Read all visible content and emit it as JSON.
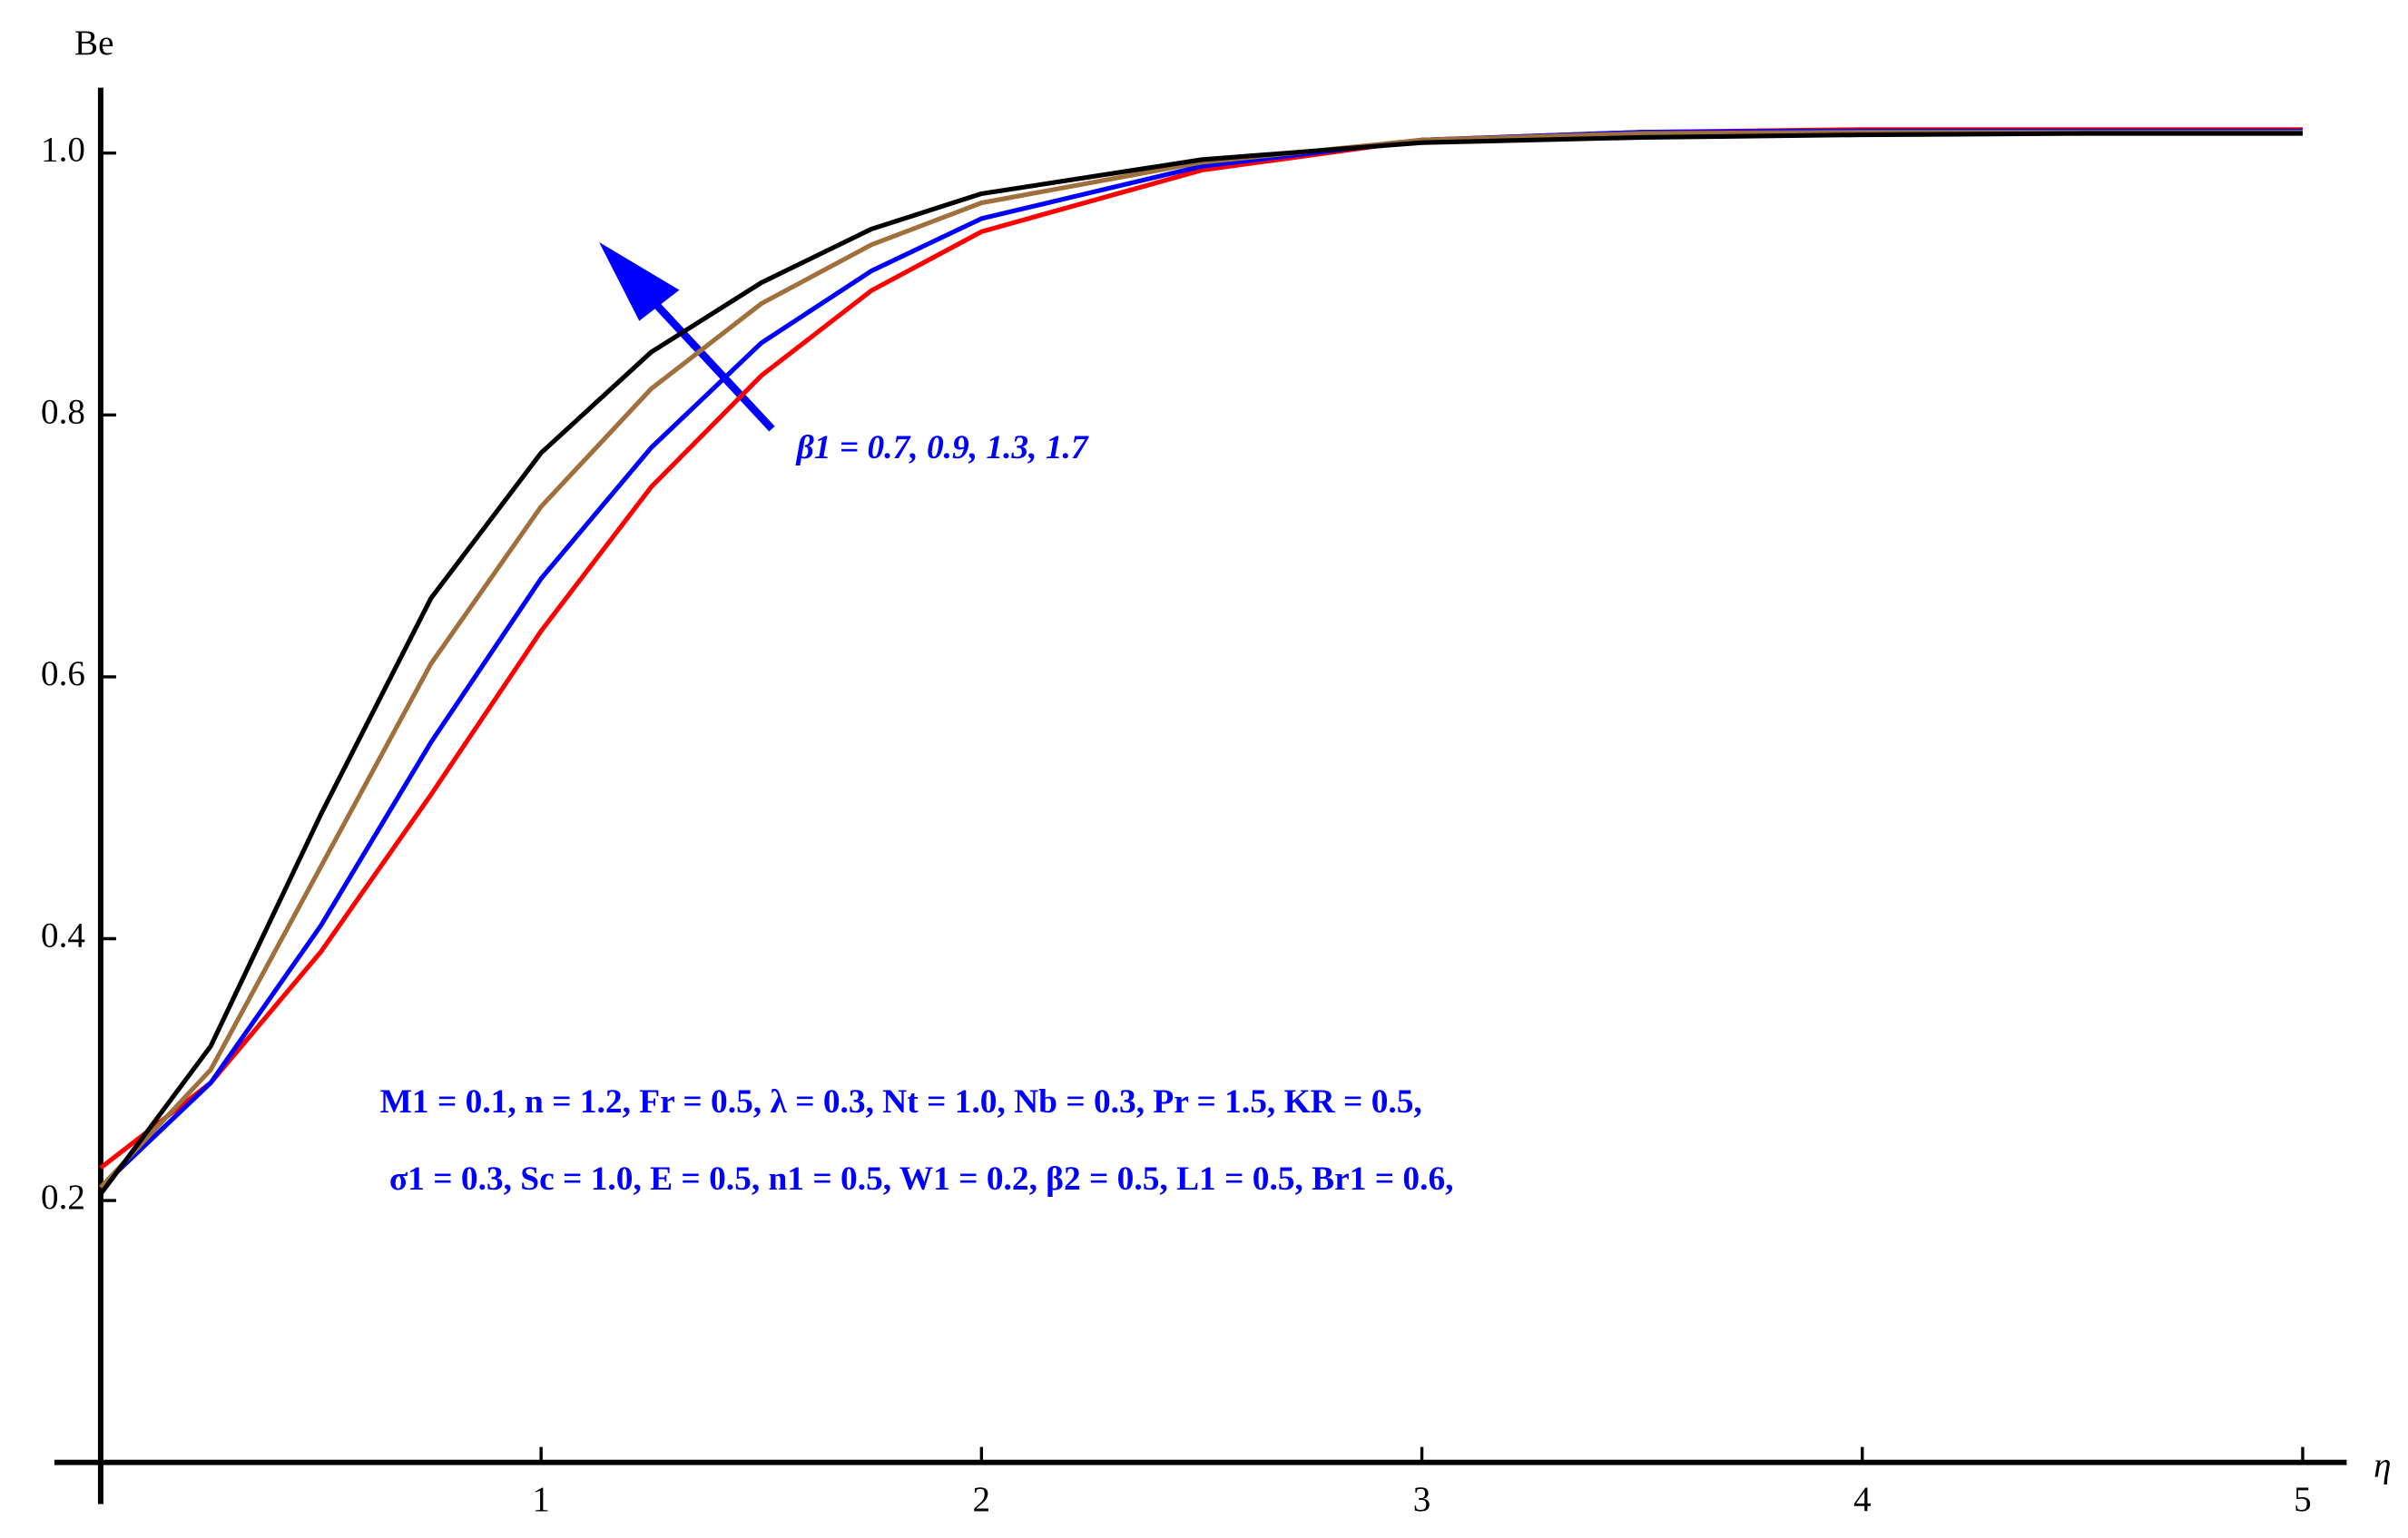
{
  "chart_data": {
    "type": "line",
    "ylabel": "Be",
    "xlabel": "η",
    "annotations": [
      "β1 = 0.7, 0.9, 1.3, 1.7",
      "M1 =  0.1, n = 1.2, Fr =  0.5,  λ = 0.3, Nt = 1.0, Nb = 0.3, Pr = 1.5, KR = 0.5,",
      "σ1 = 0.3,  Sc = 1.0,  E = 0.5, n1 = 0.5, W1 = 0.2, β2 = 0.5, L1 = 0.5, Br1 = 0.6,"
    ],
    "x": [
      0,
      0.25,
      0.5,
      0.75,
      1,
      1.25,
      1.5,
      1.75,
      2,
      2.5,
      3,
      3.5,
      4,
      4.5,
      5
    ],
    "series": [
      {
        "color": "#ff0000",
        "values": [
          0.225,
          0.29,
          0.39,
          0.51,
          0.635,
          0.745,
          0.83,
          0.895,
          0.94,
          0.987,
          1.01,
          1.016,
          1.018,
          1.018,
          1.018
        ]
      },
      {
        "color": "#0000ff",
        "values": [
          0.21,
          0.29,
          0.41,
          0.55,
          0.675,
          0.775,
          0.855,
          0.91,
          0.95,
          0.99,
          1.01,
          1.016,
          1.017,
          1.017,
          1.017
        ]
      },
      {
        "color": "#a0703c",
        "values": [
          0.21,
          0.3,
          0.455,
          0.61,
          0.73,
          0.82,
          0.885,
          0.93,
          0.962,
          0.993,
          1.01,
          1.015,
          1.016,
          1.016,
          1.016
        ]
      },
      {
        "color": "#000000",
        "values": [
          0.205,
          0.318,
          0.495,
          0.66,
          0.771,
          0.848,
          0.901,
          0.942,
          0.969,
          0.995,
          1.008,
          1.012,
          1.014,
          1.015,
          1.015
        ]
      }
    ],
    "xlim": [
      0,
      5.1
    ],
    "ylim": [
      0,
      1.05
    ],
    "xticks": [
      1,
      2,
      3,
      4,
      5
    ],
    "yticks": [
      0.2,
      0.4,
      0.6,
      0.8,
      {
        "value": 1,
        "label": "1.0"
      }
    ]
  }
}
